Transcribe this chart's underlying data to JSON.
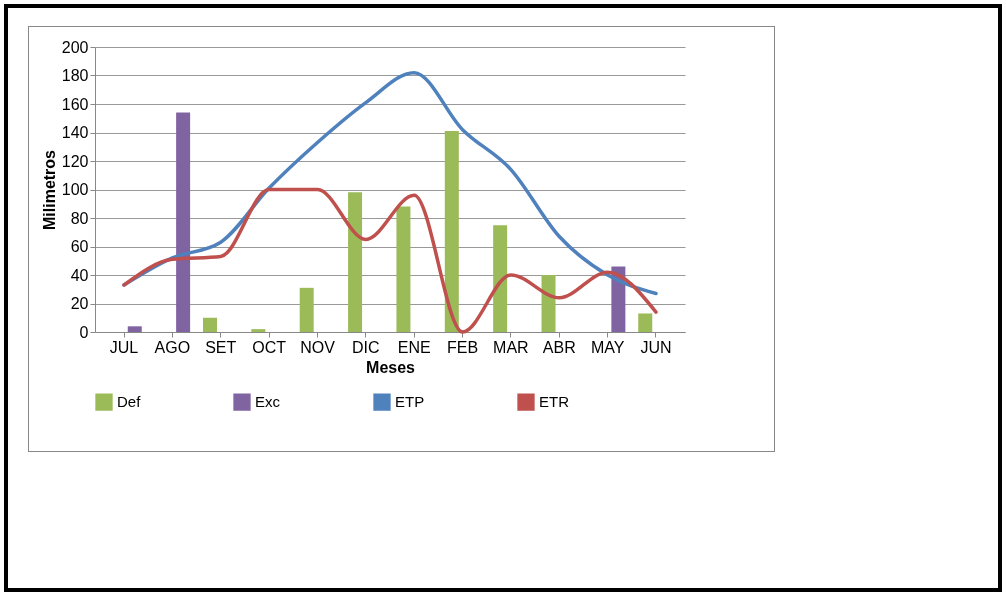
{
  "chart_data": {
    "type": "bar",
    "xlabel": "Meses",
    "ylabel": "Milimetros",
    "categories": [
      "JUL",
      "AGO",
      "SET",
      "OCT",
      "NOV",
      "DIC",
      "ENE",
      "FEB",
      "MAR",
      "ABR",
      "MAY",
      "JUN"
    ],
    "series": [
      {
        "name": "Def",
        "color": "#9bbb59",
        "values": [
          null,
          null,
          10,
          2,
          31,
          98,
          88,
          141,
          75,
          40,
          null,
          13
        ]
      },
      {
        "name": "Exc",
        "color": "#8064a2",
        "values": [
          4,
          154,
          null,
          null,
          null,
          null,
          null,
          null,
          null,
          null,
          46,
          null
        ]
      },
      {
        "name": "ETP",
        "type": "line",
        "color": "#4f81bd",
        "values": [
          33,
          52,
          63,
          101,
          133,
          161,
          182,
          142,
          114,
          67,
          40,
          27
        ]
      },
      {
        "name": "ETR",
        "type": "line",
        "color": "#c0504d",
        "values": [
          33,
          51,
          53,
          100,
          100,
          65,
          96,
          0,
          40,
          24,
          42,
          14
        ]
      }
    ],
    "ylim": [
      0,
      200
    ],
    "yticks": [
      0,
      20,
      40,
      60,
      80,
      100,
      120,
      140,
      160,
      180,
      200
    ],
    "grid": "y",
    "legend": "bottom",
    "marker": "none"
  }
}
